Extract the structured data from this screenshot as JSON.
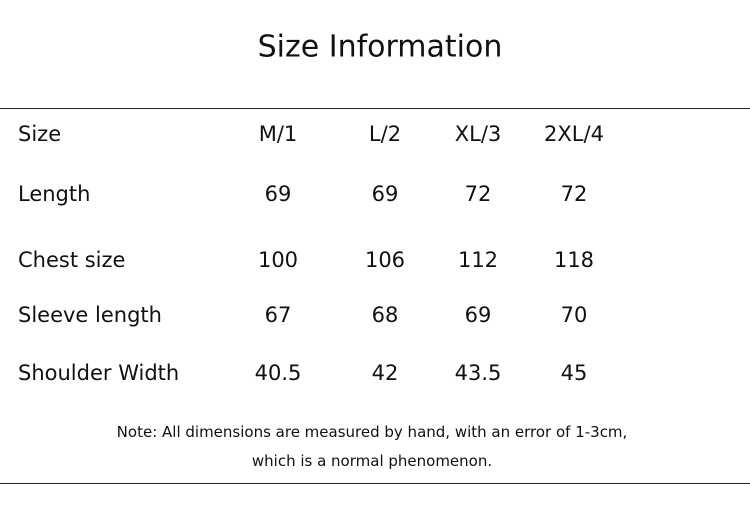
{
  "header": {
    "title": "Size Information"
  },
  "table": {
    "columns": [
      "Size",
      "M/1",
      "L/2",
      "XL/3",
      "2XL/4"
    ],
    "rows": [
      [
        "Length",
        69,
        69,
        72,
        72
      ],
      [
        "Chest size",
        100,
        106,
        112,
        118
      ],
      [
        "Sleeve length",
        67,
        68,
        69,
        70
      ],
      [
        "Shoulder Width",
        40.5,
        42,
        43.5,
        45
      ]
    ]
  },
  "note": [
    "Note: All dimensions are measured by hand, with an error of 1-3cm,",
    "which is a normal phenomenon."
  ]
}
